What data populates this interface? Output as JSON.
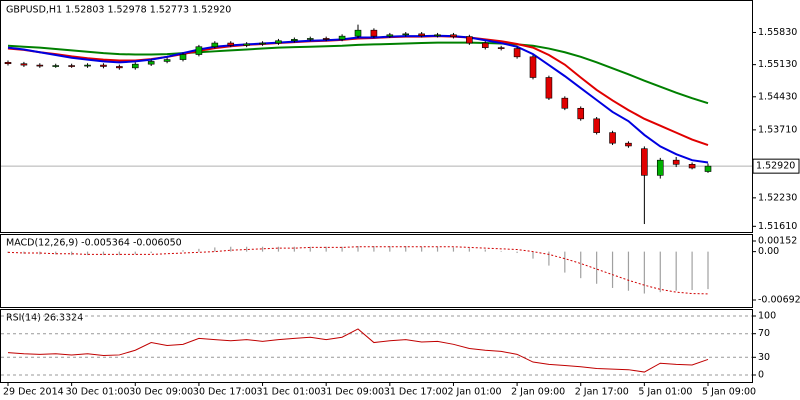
{
  "chart_data": [
    {
      "type": "candlestick",
      "title": "GBPUSD,H1  1.52803 1.52978 1.52773 1.52920",
      "categories": [
        "29 Dec 2014",
        null,
        null,
        null,
        "30 Dec 01:00",
        null,
        null,
        null,
        "30 Dec 09:00",
        null,
        null,
        null,
        "30 Dec 17:00",
        null,
        null,
        null,
        "31 Dec 01:00",
        null,
        null,
        null,
        "31 Dec 09:00",
        null,
        null,
        null,
        "31 Dec 17:00",
        null,
        null,
        null,
        "2 Jan 01:00",
        null,
        null,
        null,
        "2 Jan 09:00",
        null,
        null,
        null,
        "2 Jan 17:00",
        null,
        null,
        null,
        "5 Jan 01:00",
        null,
        null,
        null,
        "5 Jan 09:00"
      ],
      "open": [
        1.5518,
        1.5515,
        1.5512,
        1.551,
        1.5511,
        1.551,
        1.5512,
        1.5509,
        1.5506,
        1.5514,
        1.552,
        1.5524,
        1.5535,
        1.5552,
        1.556,
        1.5555,
        1.5558,
        1.556,
        1.5565,
        1.5568,
        1.557,
        1.5568,
        1.5575,
        1.5588,
        1.5575,
        1.5578,
        1.558,
        1.5576,
        1.5578,
        1.5574,
        1.556,
        1.555,
        1.5548,
        1.553,
        1.5485,
        1.544,
        1.5418,
        1.5395,
        1.5365,
        1.5342,
        1.533,
        1.5272,
        1.5305,
        1.5296,
        1.52803
      ],
      "high": [
        1.5522,
        1.5519,
        1.5516,
        1.5515,
        1.5515,
        1.5516,
        1.5516,
        1.5513,
        1.5518,
        1.5524,
        1.5528,
        1.5539,
        1.5556,
        1.5564,
        1.5564,
        1.5562,
        1.5564,
        1.5569,
        1.5572,
        1.5574,
        1.5574,
        1.5579,
        1.56,
        1.5592,
        1.5582,
        1.5584,
        1.5584,
        1.5582,
        1.5582,
        1.5578,
        1.5564,
        1.5554,
        1.5552,
        1.5534,
        1.5489,
        1.5444,
        1.5422,
        1.5399,
        1.5369,
        1.5346,
        1.5335,
        1.531,
        1.5312,
        1.53,
        1.52978
      ],
      "low": [
        1.5511,
        1.5508,
        1.5506,
        1.5506,
        1.5506,
        1.5506,
        1.5505,
        1.5502,
        1.5502,
        1.551,
        1.5516,
        1.552,
        1.5531,
        1.5548,
        1.5551,
        1.5551,
        1.5554,
        1.5556,
        1.5561,
        1.5564,
        1.5564,
        1.5564,
        1.5571,
        1.5571,
        1.5571,
        1.5574,
        1.5572,
        1.5572,
        1.557,
        1.5556,
        1.5546,
        1.5544,
        1.5526,
        1.5481,
        1.5436,
        1.5414,
        1.5391,
        1.5361,
        1.5338,
        1.5332,
        1.5166,
        1.5265,
        1.529,
        1.5285,
        1.52773
      ],
      "close": [
        1.5515,
        1.5512,
        1.551,
        1.5511,
        1.551,
        1.5512,
        1.5509,
        1.5506,
        1.5514,
        1.552,
        1.5524,
        1.5535,
        1.5552,
        1.556,
        1.5555,
        1.5558,
        1.556,
        1.5565,
        1.5568,
        1.557,
        1.5568,
        1.5575,
        1.5588,
        1.5575,
        1.5578,
        1.558,
        1.5576,
        1.5578,
        1.5574,
        1.556,
        1.555,
        1.5548,
        1.553,
        1.5485,
        1.544,
        1.5418,
        1.5395,
        1.5365,
        1.5342,
        1.5336,
        1.5272,
        1.5305,
        1.5296,
        1.5288,
        1.5292
      ],
      "up_color": "#00b000",
      "down_color": "#e00000",
      "series": [
        {
          "color": "#008000",
          "values": [
            1.5554,
            1.5552,
            1.555,
            1.5547,
            1.5544,
            1.5541,
            1.5538,
            1.5536,
            1.5535,
            1.5535,
            1.5536,
            1.5538,
            1.554,
            1.5542,
            1.5544,
            1.5546,
            1.5548,
            1.555,
            1.5551,
            1.5552,
            1.5553,
            1.5554,
            1.5556,
            1.5557,
            1.5558,
            1.5559,
            1.556,
            1.5561,
            1.5561,
            1.5561,
            1.556,
            1.5559,
            1.5557,
            1.5554,
            1.5548,
            1.554,
            1.553,
            1.5518,
            1.5505,
            1.5492,
            1.5478,
            1.5465,
            1.5452,
            1.544,
            1.5429
          ]
        },
        {
          "color": "#e00000",
          "values": [
            1.5548,
            1.5545,
            1.554,
            1.5536,
            1.5531,
            1.5527,
            1.5524,
            1.5522,
            1.5522,
            1.5525,
            1.553,
            1.5536,
            1.5543,
            1.5549,
            1.5553,
            1.5556,
            1.5558,
            1.556,
            1.5562,
            1.5564,
            1.5565,
            1.5567,
            1.557,
            1.5571,
            1.5573,
            1.5574,
            1.5574,
            1.5575,
            1.5574,
            1.5572,
            1.5568,
            1.5564,
            1.5558,
            1.555,
            1.5534,
            1.5513,
            1.5485,
            1.5458,
            1.5435,
            1.5414,
            1.5395,
            1.538,
            1.5365,
            1.535,
            1.5338
          ]
        },
        {
          "color": "#0000e0",
          "values": [
            1.555,
            1.5546,
            1.554,
            1.5534,
            1.5528,
            1.5524,
            1.552,
            1.5518,
            1.552,
            1.5524,
            1.553,
            1.5538,
            1.5546,
            1.5552,
            1.5555,
            1.5557,
            1.5559,
            1.5561,
            1.5563,
            1.5565,
            1.5566,
            1.5568,
            1.5572,
            1.5572,
            1.5574,
            1.5575,
            1.5575,
            1.5576,
            1.5575,
            1.5572,
            1.5566,
            1.556,
            1.5552,
            1.5536,
            1.5512,
            1.5488,
            1.5462,
            1.5436,
            1.541,
            1.539,
            1.536,
            1.5335,
            1.5318,
            1.5305,
            1.53
          ]
        }
      ],
      "ylim": [
        1.5153,
        1.5645
      ],
      "yticks": [
        {
          "value": 1.5583,
          "label": "1.55830"
        },
        {
          "value": 1.5513,
          "label": "1.55130"
        },
        {
          "value": 1.5443,
          "label": "1.54430"
        },
        {
          "value": 1.5371,
          "label": "1.53710"
        },
        {
          "value": 1.5223,
          "label": "1.52230"
        },
        {
          "value": 1.5161,
          "label": "1.51610"
        }
      ],
      "last_price": {
        "value": 1.5292,
        "label": "1.52920"
      }
    },
    {
      "type": "macd",
      "title": "MACD(12,26,9) -0.005364 -0.006050",
      "series": [
        {
          "color": "#a0a0a0",
          "values": [
            -0.0002,
            -0.0003,
            -0.0004,
            -0.0004,
            -0.0005,
            -0.0005,
            -0.0005,
            -0.0005,
            -0.0004,
            -0.0002,
            0.0,
            0.0002,
            0.0004,
            0.0006,
            0.0007,
            0.0007,
            0.0007,
            0.0007,
            0.0007,
            0.0007,
            0.0007,
            0.0007,
            0.0008,
            0.0008,
            0.0008,
            0.0008,
            0.0007,
            0.0007,
            0.0006,
            0.0005,
            0.0003,
            0.0001,
            -0.0002,
            -0.001,
            -0.002,
            -0.003,
            -0.0038,
            -0.0046,
            -0.0052,
            -0.0056,
            -0.006,
            -0.0058,
            -0.0056,
            -0.0055,
            -0.005364
          ]
        },
        {
          "color": "#d00000",
          "values": [
            -0.0001,
            -0.0002,
            -0.0002,
            -0.0003,
            -0.0003,
            -0.0004,
            -0.0004,
            -0.0004,
            -0.0004,
            -0.0004,
            -0.0003,
            -0.0002,
            -0.0001,
            0.0,
            0.0002,
            0.0003,
            0.0004,
            0.0005,
            0.0005,
            0.0006,
            0.0006,
            0.0006,
            0.0007,
            0.0007,
            0.0007,
            0.0007,
            0.0007,
            0.0007,
            0.0007,
            0.0006,
            0.0005,
            0.0004,
            0.0003,
            0.0,
            -0.0004,
            -0.001,
            -0.0017,
            -0.0025,
            -0.0033,
            -0.0041,
            -0.0048,
            -0.0054,
            -0.0058,
            -0.006,
            -0.00605
          ]
        }
      ],
      "ylim": [
        -0.006924,
        0.00152
      ],
      "yticks": [
        {
          "value": 0.00152,
          "label": "0.00152"
        },
        {
          "value": 0,
          "label": "0.00"
        },
        {
          "value": -0.006924,
          "label": "-0.006924"
        }
      ]
    },
    {
      "type": "line",
      "title": "RSI(14) 26.3324",
      "color": "#c00000",
      "values": [
        38,
        36,
        35,
        36,
        34,
        36,
        33,
        34,
        42,
        55,
        50,
        52,
        62,
        60,
        58,
        60,
        57,
        60,
        62,
        64,
        60,
        64,
        78,
        55,
        58,
        60,
        56,
        57,
        52,
        45,
        42,
        40,
        35,
        22,
        18,
        16,
        14,
        11,
        10,
        9,
        5,
        20,
        18,
        17,
        26.3324
      ],
      "ylim": [
        0,
        100
      ],
      "yticks": [
        100,
        70,
        30,
        0
      ]
    }
  ]
}
